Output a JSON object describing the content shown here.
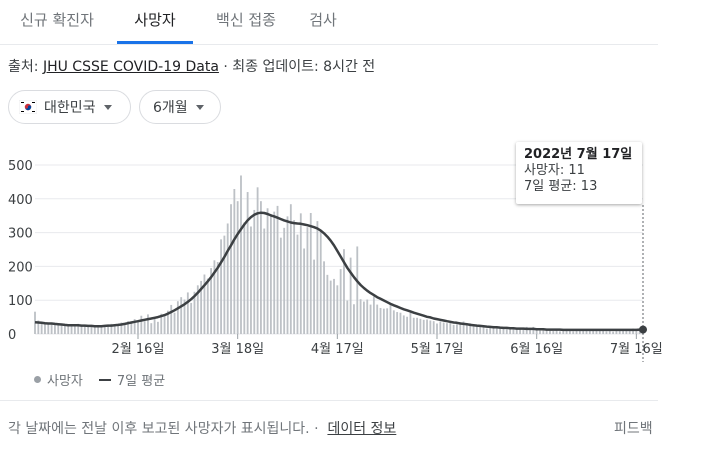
{
  "tabs": [
    {
      "label": "신규 확진자"
    },
    {
      "label": "사망자"
    },
    {
      "label": "백신 접종"
    },
    {
      "label": "검사"
    }
  ],
  "source": {
    "prefix": "출처: ",
    "link": "JHU CSSE COVID-19 Data",
    "suffix": " · 최종 업데이트: 8시간 전"
  },
  "filters": {
    "country": "대한민국",
    "range": "6개월"
  },
  "tooltip": {
    "date": "2022년 7월 17일",
    "deaths": "사망자: 11",
    "avg": "7일 평균: 13"
  },
  "legend": {
    "bars": "사망자",
    "line": "7일 평균"
  },
  "footer": {
    "note": "각 날짜에는 전날 이후 보고된 사망자가 표시됩니다. ·",
    "link": "데이터 정보",
    "feedback": "피드백"
  },
  "colors": {
    "bar": "#bdc1c6",
    "line": "#3c4043",
    "accent": "#1a73e8",
    "grid": "#e8eaed"
  },
  "chart_data": {
    "type": "bar",
    "ylim": [
      0,
      500
    ],
    "yticks": [
      0,
      100,
      200,
      300,
      400,
      500
    ],
    "xlabels": [
      {
        "label": "2월 16일",
        "day": 31
      },
      {
        "label": "3월 18일",
        "day": 61
      },
      {
        "label": "4월 17일",
        "day": 91
      },
      {
        "label": "5월 17일",
        "day": 121
      },
      {
        "label": "6월 16일",
        "day": 151
      },
      {
        "label": "7월 16일",
        "day": 181
      }
    ],
    "daily": [
      66,
      40,
      36,
      33,
      33,
      31,
      29,
      30,
      27,
      28,
      24,
      24,
      28,
      30,
      28,
      25,
      23,
      22,
      20,
      20,
      24,
      25,
      28,
      30,
      29,
      30,
      34,
      28,
      38,
      36,
      44,
      41,
      54,
      38,
      58,
      32,
      49,
      36,
      60,
      57,
      69,
      86,
      63,
      97,
      109,
      102,
      123,
      92,
      125,
      144,
      157,
      176,
      164,
      195,
      218,
      213,
      280,
      291,
      327,
      384,
      429,
      393,
      469,
      330,
      420,
      318,
      367,
      434,
      393,
      312,
      372,
      355,
      362,
      379,
      285,
      314,
      348,
      384,
      337,
      294,
      357,
      253,
      316,
      358,
      220,
      334,
      304,
      215,
      175,
      158,
      163,
      144,
      192,
      251,
      99,
      226,
      88,
      259,
      103,
      96,
      102,
      87,
      111,
      87,
      77,
      75,
      76,
      86,
      70,
      65,
      63,
      55,
      51,
      63,
      48,
      48,
      45,
      42,
      43,
      40,
      38,
      31,
      37,
      34,
      32,
      33,
      27,
      29,
      35,
      37,
      27,
      32,
      25,
      23,
      23,
      21,
      16,
      18,
      24,
      21,
      16,
      16,
      14,
      14,
      15,
      13,
      15,
      18,
      21,
      18,
      21,
      12,
      10,
      11,
      14,
      10,
      9,
      14,
      8,
      11,
      15,
      13,
      8,
      10,
      11,
      9,
      11,
      9,
      12,
      13,
      10,
      9,
      8,
      10,
      7,
      9,
      10,
      14,
      13,
      11,
      16,
      15,
      12,
      11
    ],
    "avg7": [
      35,
      34,
      33,
      32,
      31,
      31,
      30,
      29,
      28,
      27,
      26,
      26,
      26,
      26,
      25,
      25,
      24,
      24,
      23,
      23,
      23,
      24,
      25,
      25,
      26,
      27,
      28,
      30,
      32,
      34,
      36,
      38,
      40,
      42,
      44,
      46,
      48,
      50,
      53,
      56,
      60,
      65,
      70,
      76,
      82,
      88,
      95,
      103,
      112,
      122,
      133,
      144,
      156,
      168,
      182,
      196,
      212,
      228,
      246,
      262,
      280,
      296,
      310,
      324,
      336,
      346,
      353,
      357,
      359,
      358,
      355,
      351,
      348,
      344,
      340,
      336,
      333,
      330,
      328,
      327,
      326,
      324,
      322,
      319,
      316,
      312,
      306,
      298,
      288,
      276,
      262,
      246,
      229,
      212,
      196,
      182,
      168,
      156,
      145,
      136,
      128,
      121,
      115,
      109,
      104,
      99,
      94,
      89,
      85,
      81,
      77,
      73,
      70,
      67,
      63,
      60,
      57,
      54,
      51,
      49,
      46,
      44,
      42,
      40,
      38,
      36,
      34,
      33,
      31,
      30,
      29,
      27,
      26,
      25,
      24,
      23,
      22,
      21,
      20,
      20,
      19,
      18,
      18,
      17,
      17,
      16,
      16,
      16,
      15,
      15,
      15,
      14,
      14,
      14,
      13,
      13,
      13,
      13,
      13,
      12,
      12,
      12,
      12,
      12,
      12,
      12,
      12,
      12,
      12,
      12,
      12,
      12,
      12,
      12,
      12,
      12,
      12,
      12,
      12,
      12,
      12,
      12,
      13,
      13
    ]
  }
}
